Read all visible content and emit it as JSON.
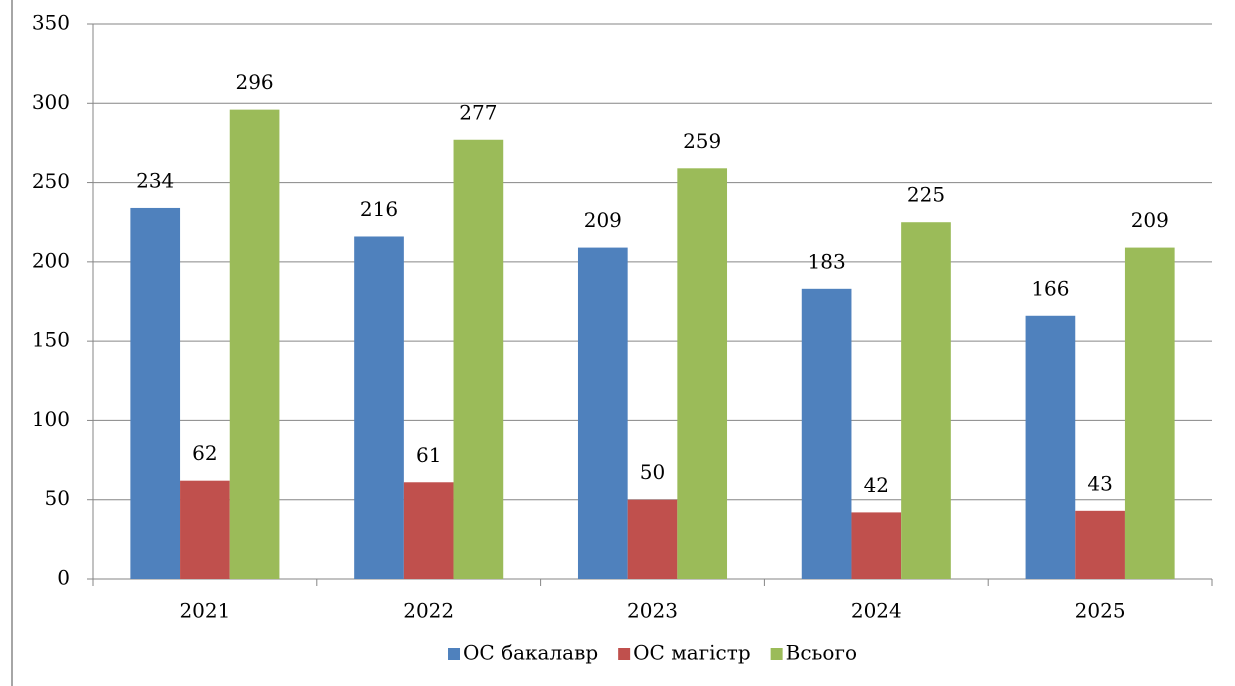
{
  "chart_data": {
    "type": "bar",
    "categories": [
      "2021",
      "2022",
      "2023",
      "2024",
      "2025"
    ],
    "series": [
      {
        "name": "ОС бакалавр",
        "color": "#4f81bd",
        "values": [
          234,
          216,
          209,
          183,
          166
        ]
      },
      {
        "name": "ОС магістр",
        "color": "#c0504d",
        "values": [
          62,
          61,
          50,
          42,
          43
        ]
      },
      {
        "name": "Всього",
        "color": "#9bbb59",
        "values": [
          296,
          277,
          259,
          225,
          209
        ]
      }
    ],
    "ylim": [
      0,
      350
    ],
    "yticks": [
      0,
      50,
      100,
      150,
      200,
      250,
      300,
      350
    ],
    "grid": true,
    "legend": "bottom"
  }
}
